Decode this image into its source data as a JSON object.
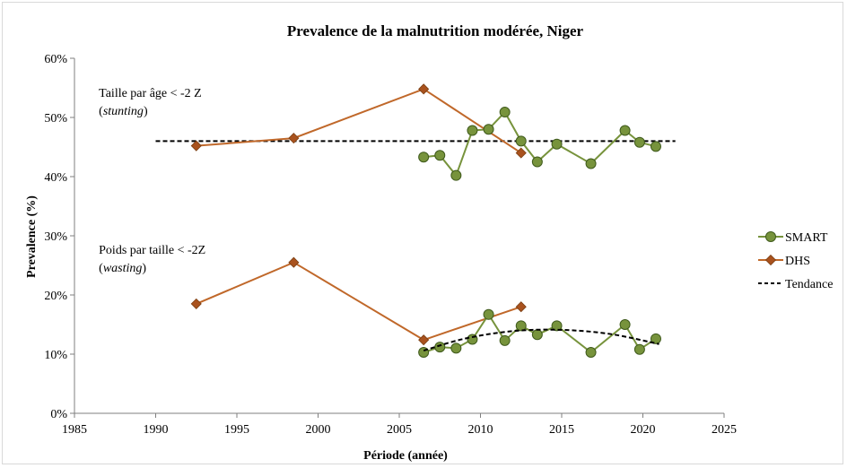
{
  "chart_data": {
    "type": "line",
    "title": "Prevalence de la malnutrition  modérée, Niger",
    "xlabel": "Période (année)",
    "ylabel": "Prevalence (%)",
    "xlim": [
      1985,
      2025
    ],
    "ylim": [
      0,
      60
    ],
    "xticks": [
      1985,
      1990,
      1995,
      2000,
      2005,
      2010,
      2015,
      2020,
      2025
    ],
    "yticks": [
      0,
      10,
      20,
      30,
      40,
      50,
      60
    ],
    "xtick_labels": [
      "1985",
      "1990",
      "1995",
      "2000",
      "2005",
      "2010",
      "2015",
      "2020",
      "2025"
    ],
    "ytick_labels": [
      "0%",
      "10%",
      "20%",
      "30%",
      "40%",
      "50%",
      "60%"
    ],
    "grid": false,
    "legend_position": "right",
    "annotations": [
      {
        "line1": "Taille par âge < -2 Z",
        "line2": "stunting",
        "x": 1986.5,
        "y": 53.5
      },
      {
        "line1": "Poids par taille < -2Z",
        "line2": "wasting",
        "x": 1986.5,
        "y": 27
      }
    ],
    "series": [
      {
        "name": "SMART",
        "group": "stunting",
        "color": "#77933c",
        "marker": "circle",
        "x": [
          2006.5,
          2007.5,
          2008.5,
          2009.5,
          2010.5,
          2011.5,
          2012.5,
          2013.5,
          2014.7,
          2016.8,
          2018.9,
          2019.8,
          2020.8
        ],
        "y": [
          43.3,
          43.6,
          40.2,
          47.8,
          48,
          50.9,
          46,
          42.5,
          45.5,
          42.2,
          47.8,
          45.8,
          45.1
        ]
      },
      {
        "name": "SMART",
        "group": "wasting",
        "color": "#77933c",
        "marker": "circle",
        "x": [
          2006.5,
          2007.5,
          2008.5,
          2009.5,
          2010.5,
          2011.5,
          2012.5,
          2013.5,
          2014.7,
          2016.8,
          2018.9,
          2019.8,
          2020.8
        ],
        "y": [
          10.3,
          11.2,
          11,
          12.5,
          16.7,
          12.3,
          14.8,
          13.3,
          14.8,
          10.3,
          15,
          10.8,
          12.6
        ]
      },
      {
        "name": "DHS",
        "group": "stunting",
        "color": "#c0682a",
        "marker": "diamond",
        "x": [
          1992.5,
          1998.5,
          2006.5,
          2012.5
        ],
        "y": [
          45.2,
          46.5,
          54.8,
          44
        ]
      },
      {
        "name": "DHS",
        "group": "wasting",
        "color": "#c0682a",
        "marker": "diamond",
        "x": [
          1992.5,
          1998.5,
          2006.5,
          2012.5
        ],
        "y": [
          18.5,
          25.5,
          12.4,
          18
        ]
      },
      {
        "name": "Tendance",
        "group": "stunting",
        "color": "#000000",
        "style": "dashed",
        "x": [
          1990,
          2022
        ],
        "y": [
          46,
          46
        ]
      },
      {
        "name": "Tendance",
        "group": "wasting",
        "color": "#000000",
        "style": "dashed",
        "x": [
          2006.5,
          2009,
          2012,
          2015,
          2018,
          2021
        ],
        "y": [
          10.6,
          12.6,
          13.9,
          14.1,
          13.4,
          11.7
        ]
      }
    ],
    "legend": [
      {
        "label": "SMART",
        "color": "#77933c",
        "marker": "circle",
        "style": "solid"
      },
      {
        "label": "DHS",
        "color": "#c0682a",
        "marker": "diamond",
        "style": "solid"
      },
      {
        "label": "Tendance",
        "color": "#000000",
        "marker": "none",
        "style": "dashed"
      }
    ]
  }
}
